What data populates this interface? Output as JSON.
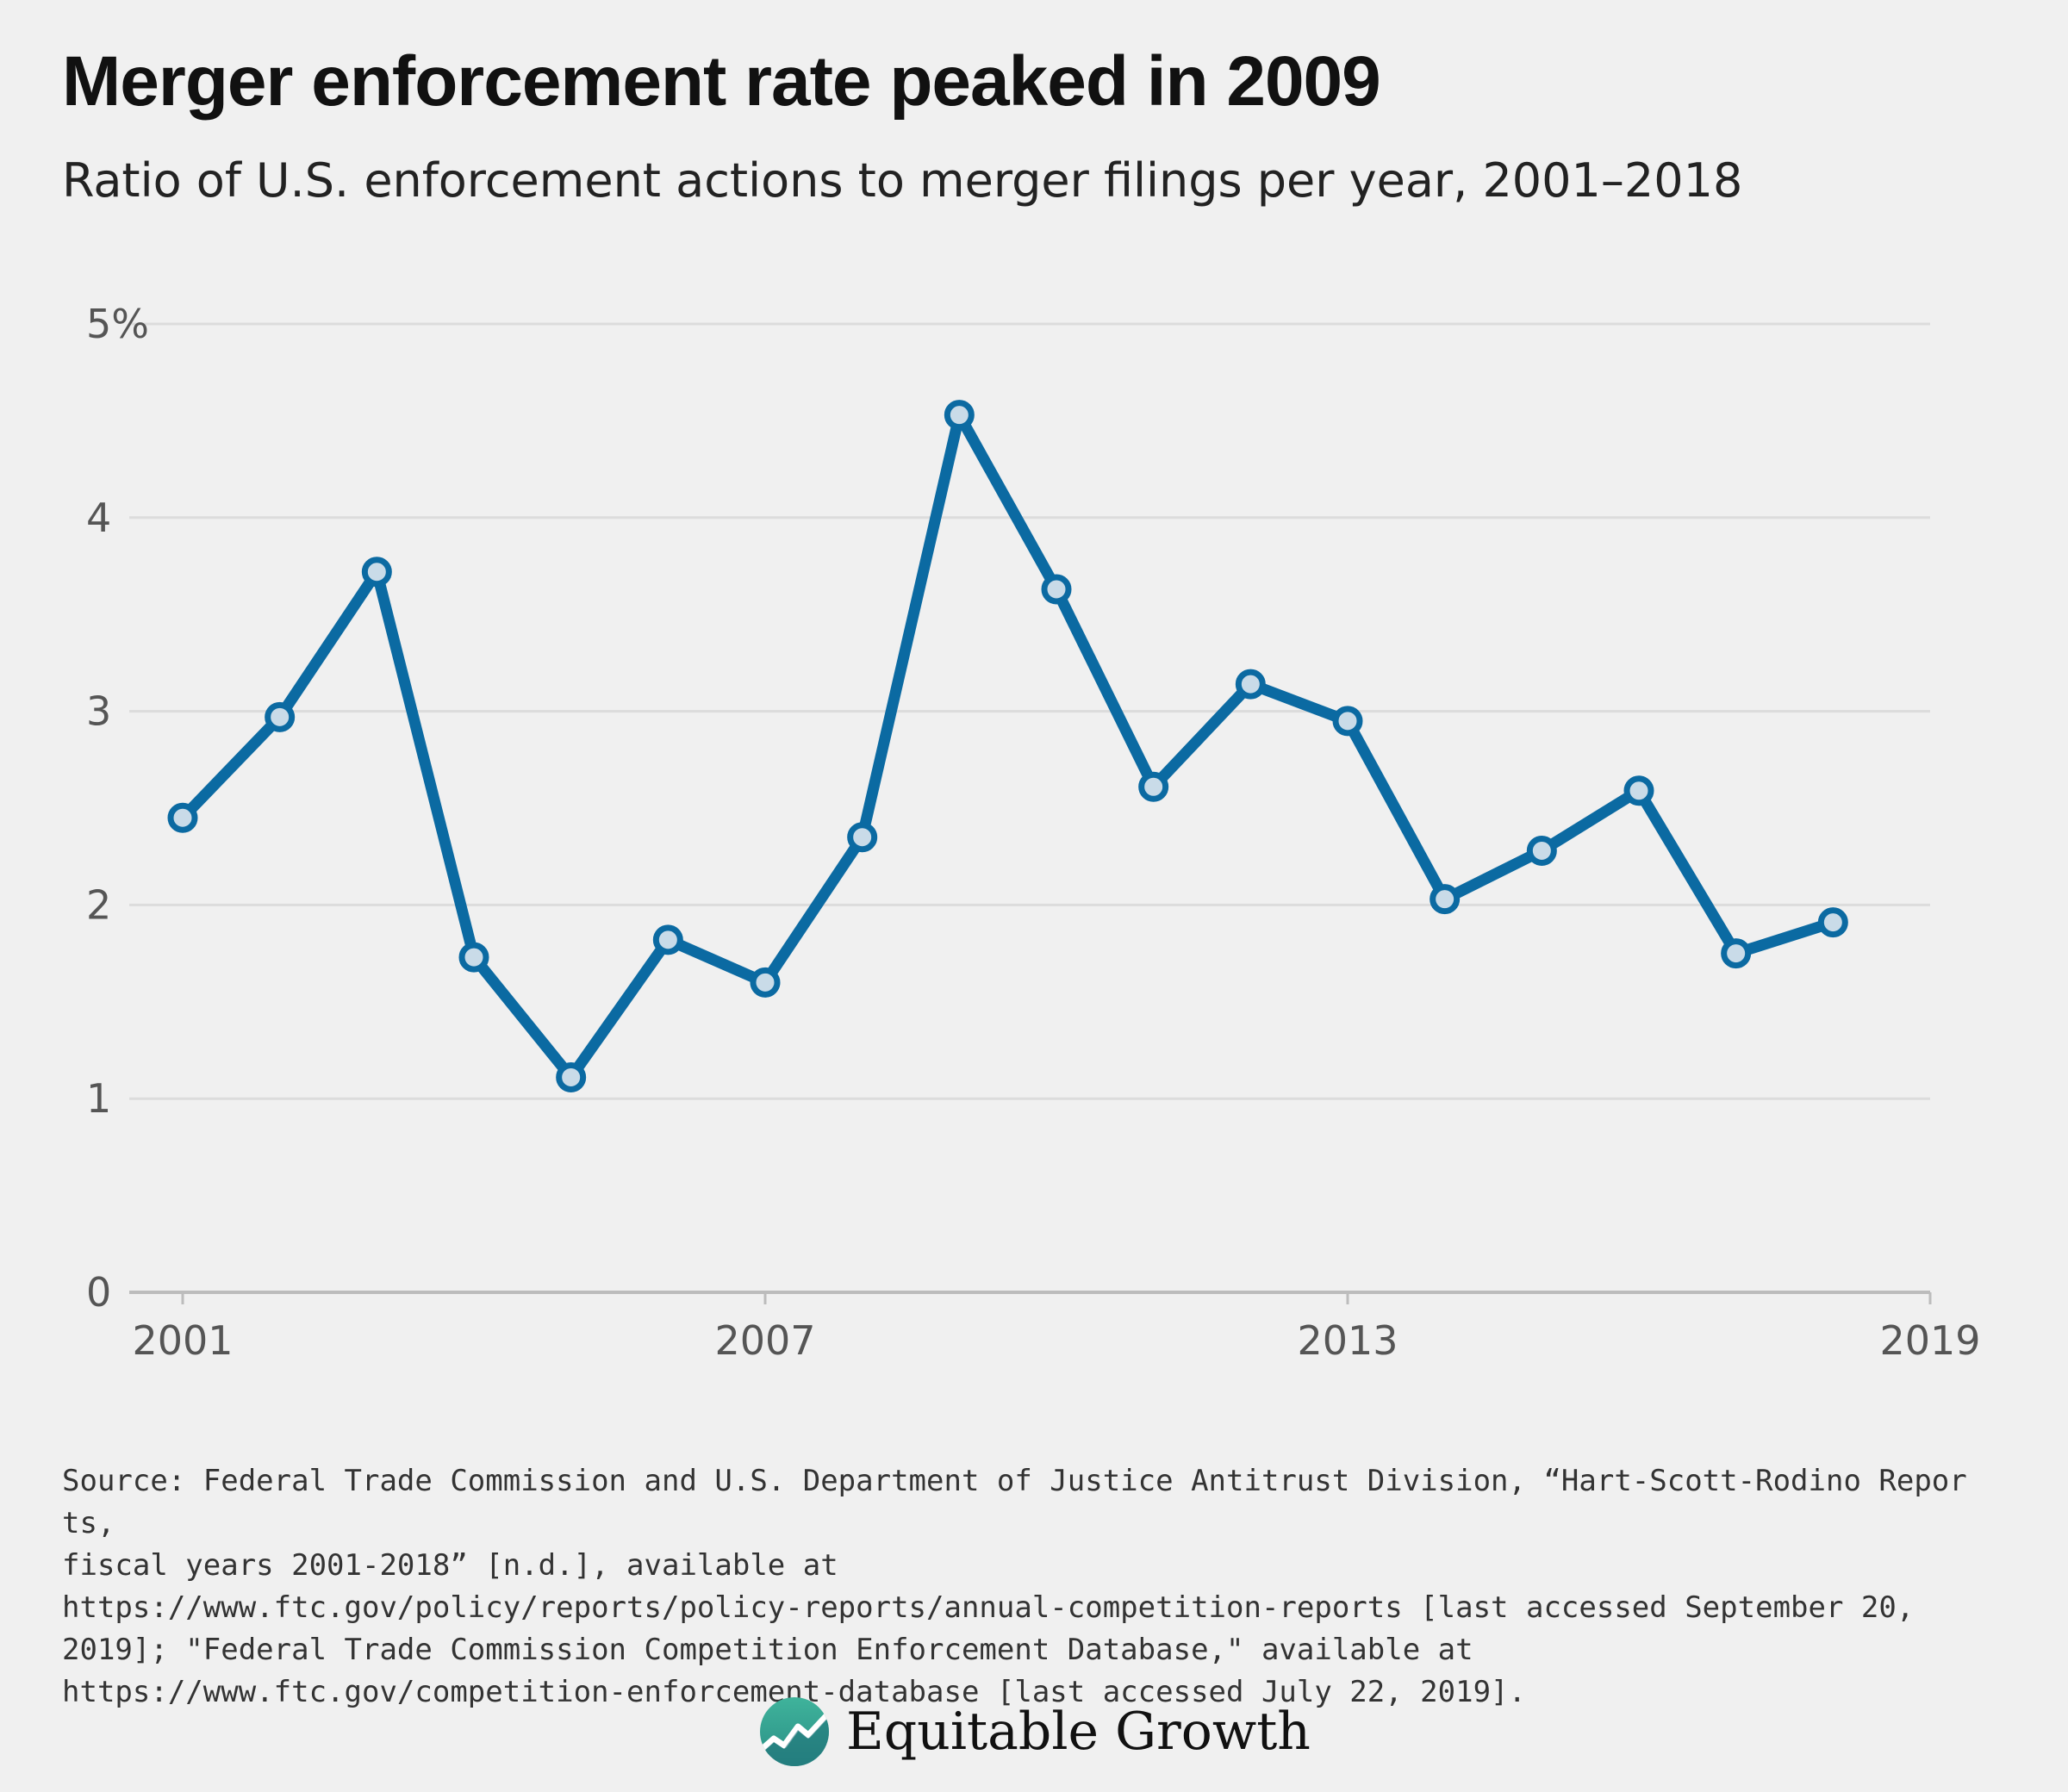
{
  "title": "Merger enforcement rate peaked in 2009",
  "subtitle": "Ratio of U.S. enforcement actions to merger filings per year, 2001–2018",
  "colors": {
    "line": "#0b6aa2",
    "marker_fill": "#c9dbe8",
    "grid": "#dcdcdc",
    "axis": "#bcbcbc"
  },
  "chart_data": {
    "type": "line",
    "title": "Merger enforcement rate peaked in 2009",
    "xlabel": "",
    "ylabel": "",
    "x": [
      2001,
      2002,
      2003,
      2004,
      2005,
      2006,
      2007,
      2008,
      2009,
      2010,
      2011,
      2012,
      2013,
      2014,
      2015,
      2016,
      2017,
      2018
    ],
    "series": [
      {
        "name": "Enforcement actions to merger filings (%)",
        "values": [
          2.45,
          2.97,
          3.72,
          1.73,
          1.11,
          1.82,
          1.6,
          2.35,
          4.53,
          3.63,
          2.61,
          3.14,
          2.95,
          2.03,
          2.28,
          2.59,
          1.75,
          1.91
        ]
      }
    ],
    "xlim": [
      2001,
      2019
    ],
    "ylim": [
      0,
      5
    ],
    "x_ticks": [
      2001,
      2007,
      2013,
      2019
    ],
    "x_tick_labels": [
      "2001",
      "2007",
      "2013",
      "2019"
    ],
    "y_ticks": [
      0,
      1,
      2,
      3,
      4,
      5
    ],
    "y_tick_labels": [
      "0",
      "1",
      "2",
      "3",
      "4",
      "5%"
    ],
    "grid": true,
    "legend": "none"
  },
  "source": {
    "lines": [
      "Source: Federal Trade Commission and U.S. Department of Justice Antitrust Division, “Hart-Scott-Rodino Reports,",
      "fiscal years 2001-2018” [n.d.], available at",
      "https://www.ftc.gov/policy/reports/policy-reports/annual-competition-reports [last accessed September 20,",
      "2019]; \"Federal Trade Commission Competition Enforcement Database,\" available at",
      "https://www.ftc.gov/competition-enforcement-database [last accessed July 22, 2019]."
    ]
  },
  "logo": {
    "text": "Equitable Growth",
    "icon": "equitable-growth-logo-icon"
  }
}
